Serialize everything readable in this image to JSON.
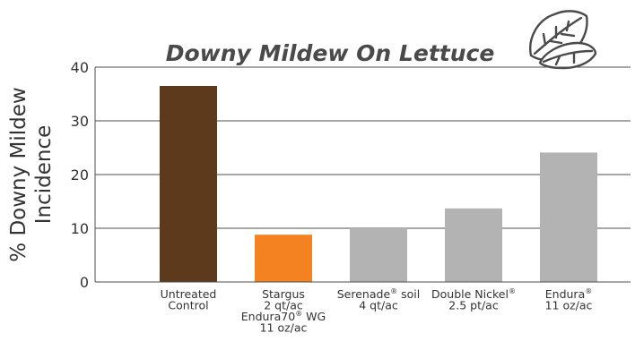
{
  "chart_data": {
    "type": "bar",
    "title": "Downy Mildew On Lettuce",
    "ylabel": [
      "% Downy Mildew",
      "Incidence"
    ],
    "xlabel": "",
    "ylim": [
      0,
      40
    ],
    "yticks": [
      0,
      10,
      20,
      30,
      40
    ],
    "grid": true,
    "legend": "none",
    "categories": [
      {
        "lines": [
          {
            "text": "Untreated"
          },
          {
            "text": "Control"
          }
        ]
      },
      {
        "lines": [
          {
            "text": "Stargus"
          },
          {
            "text": "2 qt/ac"
          },
          {
            "text": "Endura70",
            "sup": "®",
            "after": " WG"
          },
          {
            "text": "11 oz/ac"
          }
        ]
      },
      {
        "lines": [
          {
            "text": "Serenade",
            "sup": "®",
            "after": " soil"
          },
          {
            "text": "4 qt/ac"
          }
        ]
      },
      {
        "lines": [
          {
            "text": "Double Nickel",
            "sup": "®"
          },
          {
            "text": "2.5 pt/ac"
          }
        ]
      },
      {
        "lines": [
          {
            "text": "Endura",
            "sup": "®"
          },
          {
            "text": "11 oz/ac"
          }
        ]
      }
    ],
    "values": [
      36.5,
      8.8,
      10.0,
      13.7,
      24.1
    ],
    "colors": [
      "#5e3a1c",
      "#f58220",
      "#b3b3b3",
      "#b3b3b3",
      "#b3b3b3"
    ],
    "gridColor": "#4d4d4d",
    "icon": "lettuce-leaf-icon"
  }
}
